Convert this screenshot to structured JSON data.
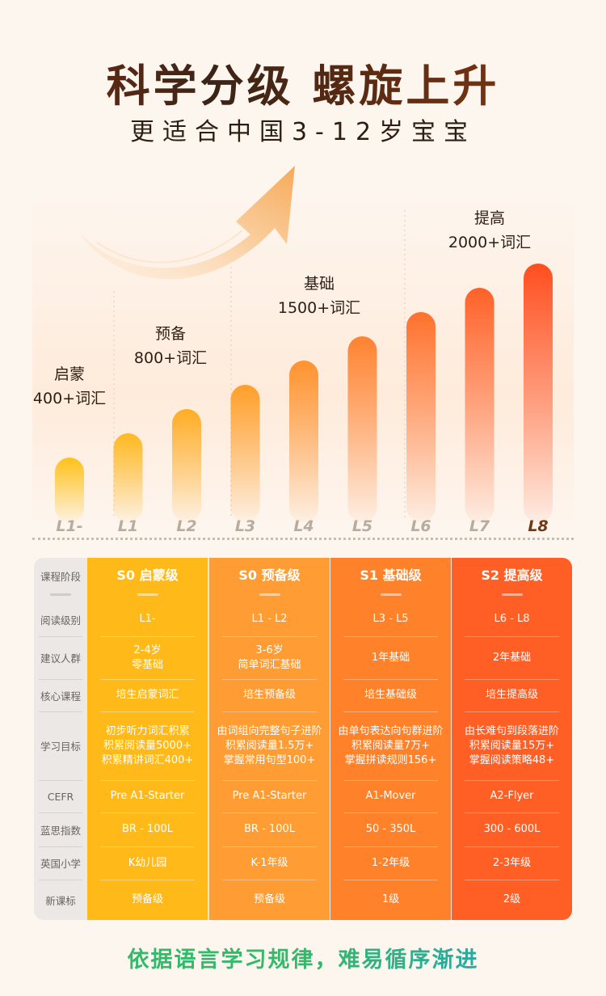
{
  "header": {
    "title": "科学分级  螺旋上升",
    "subtitle": "更适合中国3-12岁宝宝"
  },
  "stages": [
    {
      "name": "启蒙",
      "words": "400+词汇"
    },
    {
      "name": "预备",
      "words": "800+词汇"
    },
    {
      "name": "基础",
      "words": "1500+词汇"
    },
    {
      "name": "提高",
      "words": "2000+词汇"
    }
  ],
  "chart_data": {
    "type": "bar",
    "categories": [
      "L1-",
      "L1",
      "L2",
      "L3",
      "L4",
      "L5",
      "L6",
      "L7",
      "L8"
    ],
    "values": [
      1,
      2,
      3,
      4,
      5,
      6,
      7,
      8,
      9
    ],
    "colors": [
      "#ffc21a",
      "#ffb81f",
      "#ffad24",
      "#ff9f2a",
      "#ff922e",
      "#ff8230",
      "#ff712c",
      "#ff6128",
      "#ff4e1e"
    ]
  },
  "table": {
    "row_labels": [
      "课程阶段",
      "阅读级别",
      "建议人群",
      "核心课程",
      "学习目标",
      "CEFR",
      "蓝思指数",
      "英国小学",
      "新课标"
    ],
    "columns": [
      {
        "color": "#ffb919",
        "cells": [
          "S0 启蒙级",
          "L1-",
          "2-4岁\n零基础",
          "培生启蒙词汇",
          "初步听力词汇积累\n积累阅读量5000+\n积累精讲词汇400+",
          "Pre A1-Starter",
          "BR - 100L",
          "K幼儿园",
          "预备级"
        ]
      },
      {
        "color": "#ff9c33",
        "cells": [
          "S0 预备级",
          "L1 - L2",
          "3-6岁\n简单词汇基础",
          "培生预备级",
          "由词组向完整句子进阶\n积累阅读量1.5万+\n掌握常用句型100+",
          "Pre A1-Starter",
          "BR - 100L",
          "K-1年级",
          "预备级"
        ]
      },
      {
        "color": "#ff822a",
        "cells": [
          "S1 基础级",
          "L3 - L5",
          "1年基础",
          "培生基础级",
          "由单句表达向句群进阶\n积累阅读量7万+\n掌握拼读规则156+",
          "A1-Mover",
          "50 - 350L",
          "1-2年级",
          "1级"
        ]
      },
      {
        "color": "#ff5f25",
        "cells": [
          "S2 提高级",
          "L6 - L8",
          "2年基础",
          "培生提高级",
          "由长难句到段落进阶\n积累阅读量15万+\n掌握阅读策略48+",
          "A2-Flyer",
          "300 - 600L",
          "2-3年级",
          "2级"
        ]
      }
    ]
  },
  "footer": {
    "text": "依据语言学习规律，难易循序渐进"
  }
}
